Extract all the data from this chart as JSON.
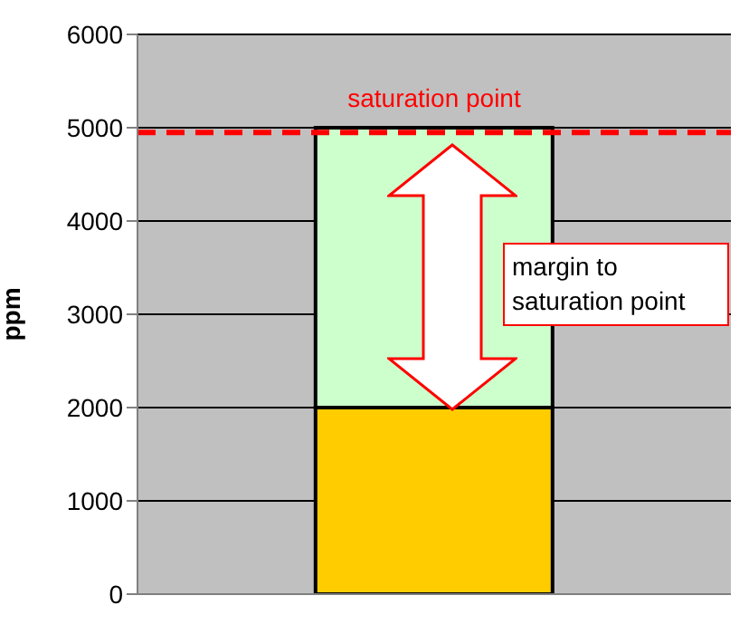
{
  "chart_data": {
    "type": "bar",
    "stacked": true,
    "ylabel": "ppm",
    "categories": [
      null
    ],
    "series": [
      {
        "color": "#ffcc00",
        "values": [
          2000
        ]
      },
      {
        "color": "#ccffcc",
        "values": [
          3000
        ]
      }
    ],
    "ylim": [
      0,
      6000
    ],
    "yticks": [
      0,
      1000,
      2000,
      3000,
      4000,
      5000,
      6000
    ],
    "grid": "y",
    "ref_lines": [
      {
        "axis": "y",
        "value": 4950,
        "label": "saturation point",
        "color": "#ff0000",
        "line_style": "dashed"
      }
    ],
    "annotations": [
      "margin to saturation point"
    ]
  }
}
